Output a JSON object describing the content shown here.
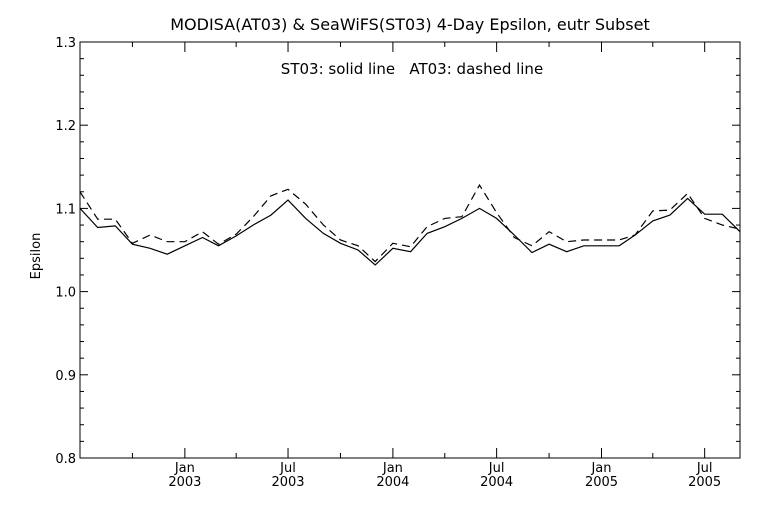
{
  "chart_data": {
    "type": "line",
    "title": "MODISA(AT03) & SeaWiFS(ST03) 4-Day Epsilon, eutr Subset",
    "annotation": "ST03: solid line   AT03: dashed line",
    "xlabel": "",
    "ylabel": "Epsilon",
    "ylim": [
      0.8,
      1.3
    ],
    "yticks": [
      "0.8",
      "0.9",
      "1.0",
      "1.1",
      "1.2",
      "1.3"
    ],
    "xlim": [
      "2002-07-01",
      "2005-09-01"
    ],
    "xticks": [
      {
        "date": "2003-01-01",
        "line1": "Jan",
        "line2": "2003"
      },
      {
        "date": "2003-07-01",
        "line1": "Jul",
        "line2": "2003"
      },
      {
        "date": "2004-01-01",
        "line1": "Jan",
        "line2": "2004"
      },
      {
        "date": "2004-07-01",
        "line1": "Jul",
        "line2": "2004"
      },
      {
        "date": "2005-01-01",
        "line1": "Jan",
        "line2": "2005"
      },
      {
        "date": "2005-07-01",
        "line1": "Jul",
        "line2": "2005"
      }
    ],
    "minor_ticks": [
      "2002-10-01",
      "2003-04-01",
      "2003-10-01",
      "2004-04-01",
      "2004-10-01",
      "2005-04-01"
    ],
    "grid": false,
    "series": [
      {
        "name": "ST03",
        "style": "solid",
        "x": [
          "2002-07-01",
          "2002-08-01",
          "2002-09-01",
          "2002-10-01",
          "2002-11-01",
          "2002-12-01",
          "2003-01-01",
          "2003-02-01",
          "2003-03-01",
          "2003-04-01",
          "2003-05-01",
          "2003-06-01",
          "2003-07-01",
          "2003-08-01",
          "2003-09-01",
          "2003-10-01",
          "2003-11-01",
          "2003-12-01",
          "2004-01-01",
          "2004-02-01",
          "2004-03-01",
          "2004-04-01",
          "2004-05-01",
          "2004-06-01",
          "2004-07-01",
          "2004-08-01",
          "2004-09-01",
          "2004-10-01",
          "2004-11-01",
          "2004-12-01",
          "2005-01-01",
          "2005-02-01",
          "2005-03-01",
          "2005-04-01",
          "2005-05-01",
          "2005-06-01",
          "2005-07-01",
          "2005-08-01",
          "2005-09-01"
        ],
        "y": [
          1.1,
          1.077,
          1.079,
          1.057,
          1.052,
          1.045,
          1.055,
          1.065,
          1.055,
          1.067,
          1.08,
          1.092,
          1.11,
          1.088,
          1.07,
          1.058,
          1.05,
          1.032,
          1.052,
          1.048,
          1.07,
          1.078,
          1.088,
          1.1,
          1.088,
          1.068,
          1.047,
          1.057,
          1.048,
          1.055,
          1.055,
          1.055,
          1.068,
          1.085,
          1.092,
          1.112,
          1.093,
          1.093,
          1.072
        ]
      },
      {
        "name": "AT03",
        "style": "dashed",
        "x": [
          "2002-07-01",
          "2002-08-01",
          "2002-09-01",
          "2002-10-01",
          "2002-11-01",
          "2002-12-01",
          "2003-01-01",
          "2003-02-01",
          "2003-03-01",
          "2003-04-01",
          "2003-05-01",
          "2003-06-01",
          "2003-07-01",
          "2003-08-01",
          "2003-09-01",
          "2003-10-01",
          "2003-11-01",
          "2003-12-01",
          "2004-01-01",
          "2004-02-01",
          "2004-03-01",
          "2004-04-01",
          "2004-05-01",
          "2004-06-01",
          "2004-07-01",
          "2004-08-01",
          "2004-09-01",
          "2004-10-01",
          "2004-11-01",
          "2004-12-01",
          "2005-01-01",
          "2005-02-01",
          "2005-03-01",
          "2005-04-01",
          "2005-05-01",
          "2005-06-01",
          "2005-07-01",
          "2005-08-01",
          "2005-09-01"
        ],
        "y": [
          1.12,
          1.087,
          1.087,
          1.058,
          1.068,
          1.06,
          1.06,
          1.072,
          1.057,
          1.069,
          1.09,
          1.115,
          1.123,
          1.105,
          1.08,
          1.062,
          1.055,
          1.036,
          1.058,
          1.054,
          1.078,
          1.088,
          1.09,
          1.128,
          1.095,
          1.065,
          1.055,
          1.072,
          1.06,
          1.062,
          1.062,
          1.062,
          1.068,
          1.097,
          1.098,
          1.118,
          1.088,
          1.08,
          1.075
        ]
      }
    ]
  }
}
